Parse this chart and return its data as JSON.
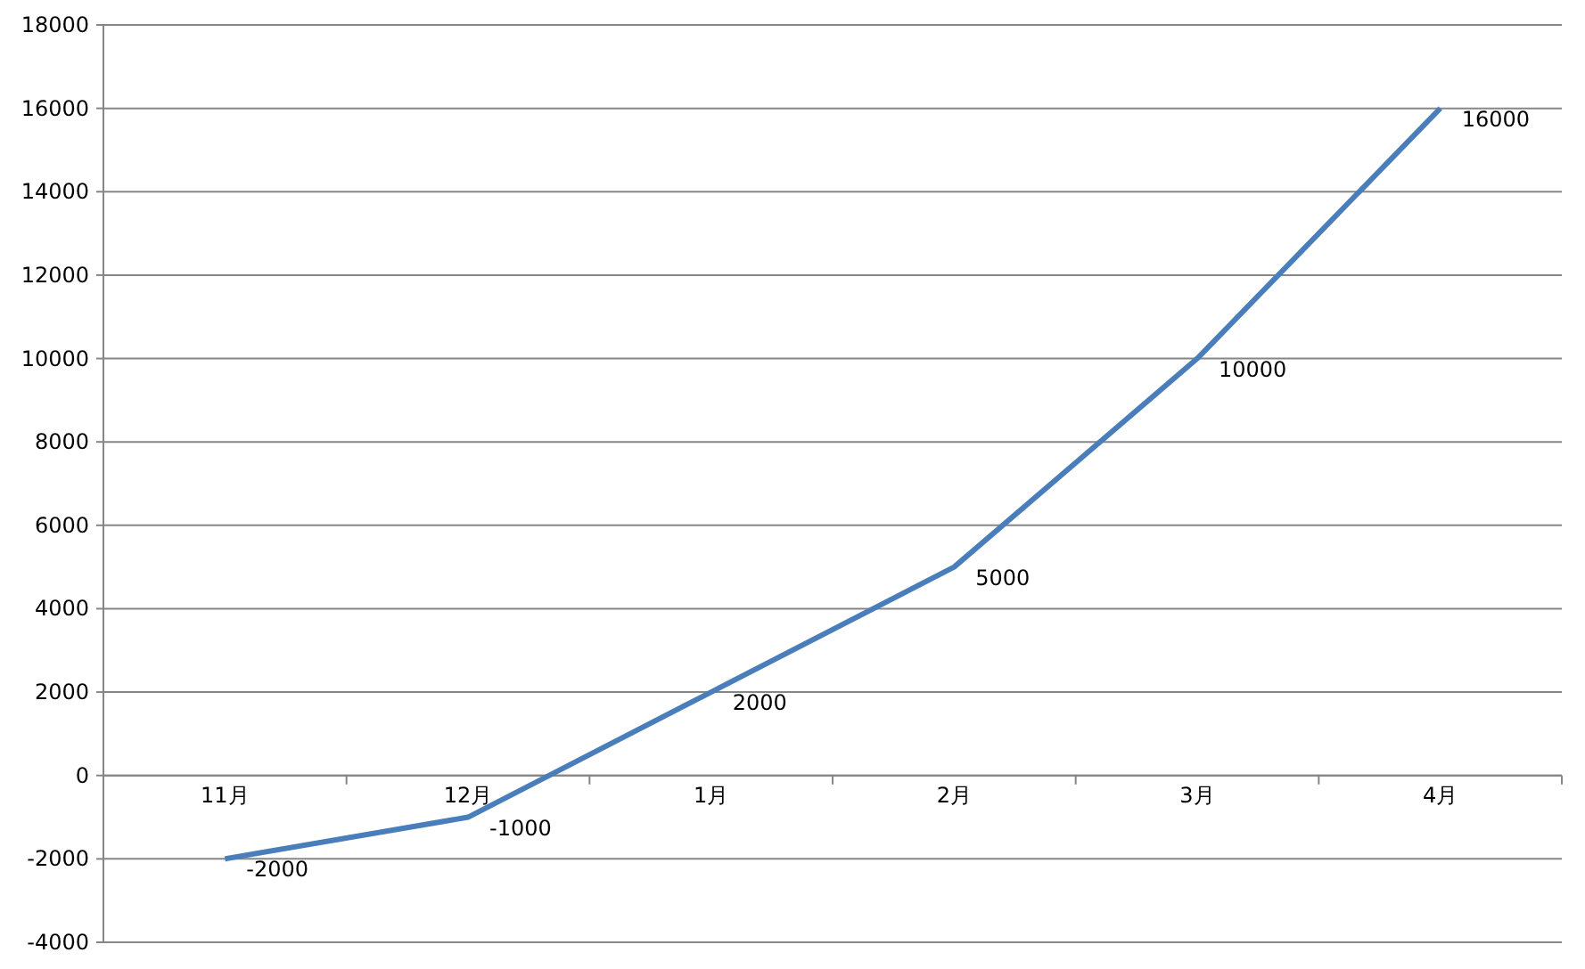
{
  "chart_data": {
    "type": "line",
    "categories": [
      "11月",
      "12月",
      "1月",
      "2月",
      "3月",
      "4月"
    ],
    "series": [
      {
        "color": "#4a7ebb",
        "values": [
          -2000,
          -1000,
          2000,
          5000,
          10000,
          16000
        ]
      }
    ],
    "ylim": [
      -4000,
      18000
    ],
    "yticks": [
      -4000,
      -2000,
      0,
      2000,
      4000,
      6000,
      8000,
      10000,
      12000,
      14000,
      16000,
      18000
    ],
    "grid": "y",
    "marker": "none",
    "line_style": "solid",
    "data_labels": true
  }
}
